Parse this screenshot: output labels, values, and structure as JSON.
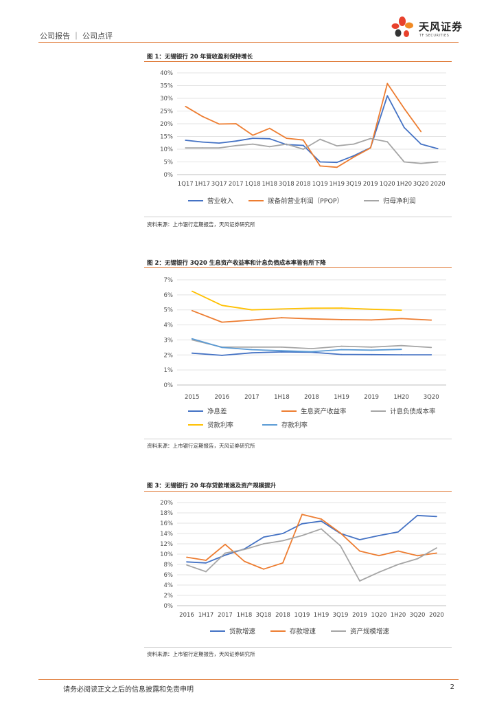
{
  "header": {
    "text": "公司报告 ｜ 公司点评"
  },
  "logo": {
    "name": "天风证券",
    "sub": "TF SECURITIES"
  },
  "footer": {
    "disclaimer": "请务必阅读正文之后的信息披露和免责申明",
    "page": "2"
  },
  "colors": {
    "blue": "#4472c4",
    "orange": "#ed7d31",
    "gray": "#a5a5a5",
    "yellow": "#ffc000",
    "lightblue": "#5b9bd5",
    "accent": "#e07b39"
  },
  "figures": [
    {
      "title": "图 1：无锡银行 20 年营收盈利保持增长",
      "source": "资料来源：上市银行定期报告，天风证券研究所"
    },
    {
      "title": "图 2：无锡银行 3Q20 生息资产收益率和计息负债成本率皆有所下降",
      "source": "资料来源：上市银行定期报告，天风证券研究所"
    },
    {
      "title": "图 3：无锡银行 20 年存贷款增速及资产规模提升",
      "source": "资料来源：上市银行定期报告，天风证券研究所"
    }
  ],
  "chart_data": [
    {
      "type": "line",
      "title": "图 1：无锡银行 20 年营收盈利保持增长",
      "categories": [
        "1Q17",
        "1H17",
        "3Q17",
        "2017",
        "1Q18",
        "1H18",
        "3Q18",
        "2018",
        "1Q19",
        "1H19",
        "3Q19",
        "2019",
        "1Q20",
        "1H20",
        "3Q20",
        "2020"
      ],
      "yticks": [
        "0%",
        "5%",
        "10%",
        "15%",
        "20%",
        "25%",
        "30%",
        "35%",
        "40%"
      ],
      "ylim": [
        0,
        40
      ],
      "legend_position": "bottom",
      "series": [
        {
          "name": "营业收入",
          "color": "#4472c4",
          "values": [
            13.5,
            12.8,
            12.4,
            13.2,
            14.3,
            14.1,
            11.8,
            11.5,
            5.0,
            4.8,
            7.4,
            10.6,
            31.0,
            18.5,
            12.0,
            10.2
          ]
        },
        {
          "name": "拨备前营业利润（PPOP）",
          "color": "#ed7d31",
          "values": [
            26.8,
            22.9,
            19.9,
            20.0,
            15.5,
            18.2,
            14.3,
            13.6,
            3.4,
            2.9,
            6.9,
            10.5,
            35.8,
            26.0,
            16.9,
            null
          ]
        },
        {
          "name": "归母净利润",
          "color": "#a5a5a5",
          "values": [
            10.5,
            10.5,
            10.5,
            11.4,
            12.0,
            11.0,
            12.0,
            10.0,
            13.9,
            11.3,
            12.0,
            14.2,
            12.9,
            5.0,
            4.4,
            5.0
          ]
        }
      ]
    },
    {
      "type": "line",
      "title": "图 2：无锡银行 3Q20 生息资产收益率和计息负债成本率皆有所下降",
      "categories": [
        "2015",
        "2016",
        "2017",
        "1H18",
        "2018",
        "1H19",
        "2019",
        "1H20",
        "3Q20"
      ],
      "yticks": [
        "0%",
        "1%",
        "2%",
        "3%",
        "4%",
        "5%",
        "6%",
        "7%"
      ],
      "ylim": [
        0,
        7
      ],
      "legend_position": "bottom",
      "series": [
        {
          "name": "净息差",
          "color": "#4472c4",
          "values": [
            2.12,
            1.97,
            2.14,
            2.2,
            2.18,
            2.03,
            2.02,
            2.01,
            2.01
          ]
        },
        {
          "name": "生息资产收益率",
          "color": "#ed7d31",
          "values": [
            4.95,
            4.18,
            4.32,
            4.48,
            4.4,
            4.35,
            4.33,
            4.42,
            4.32
          ]
        },
        {
          "name": "计息负债成本率",
          "color": "#a5a5a5",
          "values": [
            3.0,
            2.52,
            2.52,
            2.52,
            2.42,
            2.58,
            2.52,
            2.62,
            2.5
          ]
        },
        {
          "name": "贷款利率",
          "color": "#ffc000",
          "values": [
            6.24,
            5.3,
            5.0,
            5.06,
            5.11,
            5.12,
            5.04,
            4.98,
            null
          ]
        },
        {
          "name": "存款利率",
          "color": "#5b9bd5",
          "values": [
            3.08,
            2.5,
            2.35,
            2.28,
            2.22,
            2.35,
            2.32,
            2.37,
            null
          ]
        }
      ]
    },
    {
      "type": "line",
      "title": "图 3：无锡银行 20 年存贷款增速及资产规模提升",
      "categories": [
        "2016",
        "1H17",
        "2017",
        "1H18",
        "3Q18",
        "2018",
        "1Q19",
        "1H19",
        "3Q19",
        "2019",
        "1Q20",
        "1H20",
        "3Q20",
        "2020"
      ],
      "yticks": [
        "0%",
        "2%",
        "4%",
        "6%",
        "8%",
        "10%",
        "12%",
        "14%",
        "16%",
        "18%",
        "20%"
      ],
      "ylim": [
        0,
        20
      ],
      "legend_position": "bottom",
      "series": [
        {
          "name": "贷款增速",
          "color": "#4472c4",
          "values": [
            8.5,
            8.3,
            9.8,
            11.0,
            13.3,
            14.0,
            15.9,
            16.4,
            14.0,
            12.8,
            13.6,
            14.3,
            17.5,
            17.3
          ]
        },
        {
          "name": "存款增速",
          "color": "#ed7d31",
          "values": [
            9.4,
            8.8,
            11.9,
            8.6,
            7.1,
            8.3,
            17.7,
            16.8,
            14.1,
            10.6,
            9.7,
            10.6,
            9.7,
            10.2
          ]
        },
        {
          "name": "资产规模增速",
          "color": "#a5a5a5",
          "values": [
            7.9,
            6.6,
            10.2,
            10.9,
            12.0,
            12.6,
            13.6,
            14.9,
            11.6,
            4.8,
            6.5,
            8.0,
            9.1,
            11.2
          ]
        }
      ]
    }
  ]
}
